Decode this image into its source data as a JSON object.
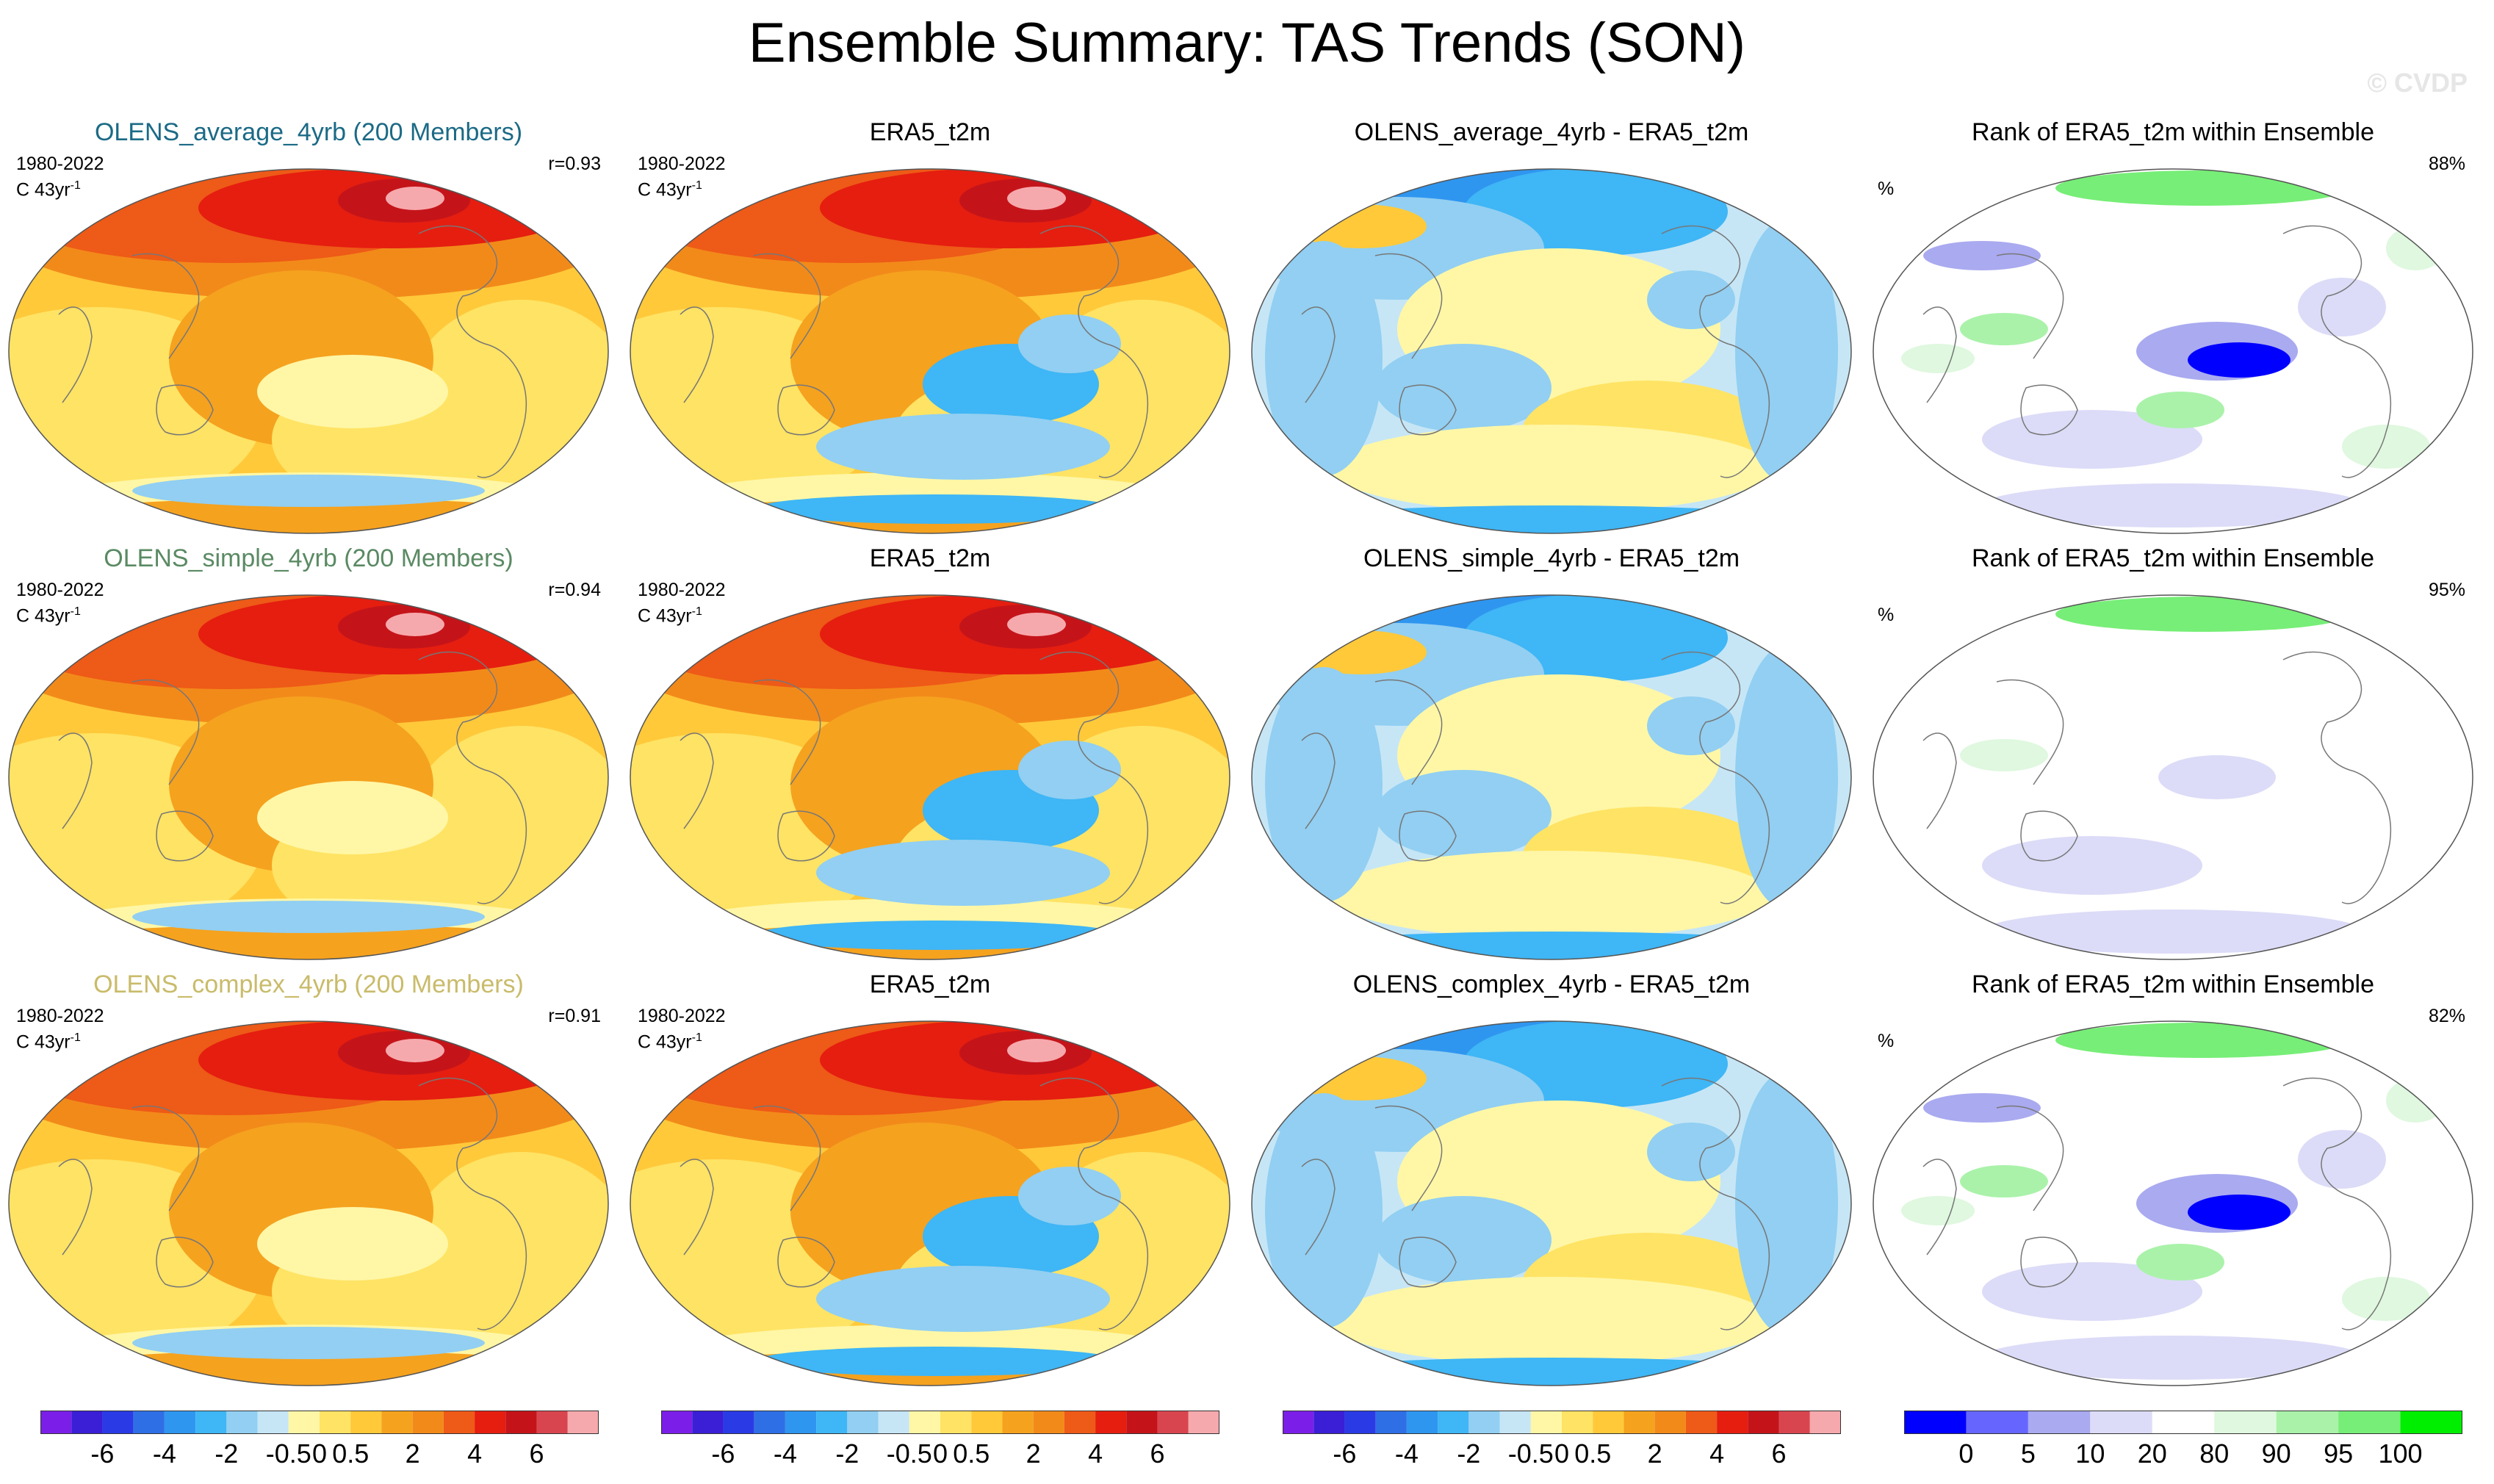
{
  "title": "Ensemble Summary: TAS Trends (SON)",
  "watermark": "© CVDP",
  "colors": {
    "diverging": [
      "#7b1fe8",
      "#3a1fd6",
      "#2a3be6",
      "#2f6fe6",
      "#2f96f0",
      "#3fb6f5",
      "#92cff2",
      "#c6e6f6",
      "#fff7a6",
      "#ffe364",
      "#ffc93a",
      "#f5a21f",
      "#f28a1a",
      "#ee5a17",
      "#e51e10",
      "#c4141a",
      "#d9454f",
      "#f6a9ad"
    ],
    "rank": [
      "#0000ff",
      "#6666ff",
      "#aaaaf0",
      "#dcdcf8",
      "#ffffff",
      "#dff8df",
      "#aaf2aa",
      "#77ee77",
      "#00ee00"
    ],
    "olens_average": "#1b6a86",
    "olens_simple": "#5a8a63",
    "olens_complex": "#c9bb6a"
  },
  "rows": [
    {
      "model_title": "OLENS_average_4yrb (200 Members)",
      "period": "1980-2022",
      "units": "C 43yr",
      "units_sup": "-1",
      "r_value": "r=0.93",
      "obs_title": "ERA5_t2m",
      "diff_title": "OLENS_average_4yrb - ERA5_t2m",
      "rank_title": "Rank of ERA5_t2m within Ensemble",
      "rank_unit": "%",
      "rank_pct": "88%"
    },
    {
      "model_title": "OLENS_simple_4yrb (200 Members)",
      "period": "1980-2022",
      "units": "C 43yr",
      "units_sup": "-1",
      "r_value": "r=0.94",
      "obs_title": "ERA5_t2m",
      "diff_title": "OLENS_simple_4yrb - ERA5_t2m",
      "rank_title": "Rank of ERA5_t2m within Ensemble",
      "rank_unit": "%",
      "rank_pct": "95%"
    },
    {
      "model_title": "OLENS_complex_4yrb (200 Members)",
      "period": "1980-2022",
      "units": "C 43yr",
      "units_sup": "-1",
      "r_value": "r=0.91",
      "obs_title": "ERA5_t2m",
      "diff_title": "OLENS_complex_4yrb - ERA5_t2m",
      "rank_title": "Rank of ERA5_t2m within Ensemble",
      "rank_unit": "%",
      "rank_pct": "82%"
    }
  ],
  "colorbars": {
    "diverging_labels": [
      "-6",
      "-4",
      "-2",
      "-0.5",
      "0",
      "0.5",
      "2",
      "4",
      "6"
    ],
    "rank_labels": [
      "0",
      "5",
      "10",
      "20",
      "80",
      "90",
      "95",
      "100"
    ]
  }
}
